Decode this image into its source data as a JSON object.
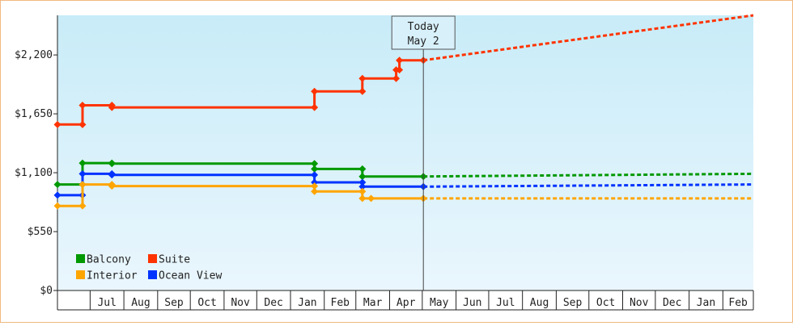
{
  "chart_data": {
    "type": "line",
    "title": "",
    "xlabel": "",
    "ylabel": "",
    "y_ticks": [
      "$0",
      "$550",
      "$1,100",
      "$1,650",
      "$2,200"
    ],
    "y_tick_values": [
      0,
      550,
      1100,
      1650,
      2200
    ],
    "ylim": [
      0,
      2570
    ],
    "x_axis_start": "2015-06-01",
    "x_axis_end": "2017-03-01",
    "x_month_ticks": [
      {
        "label": "Jul",
        "date": "2015-07-01"
      },
      {
        "label": "Aug",
        "date": "2015-08-01"
      },
      {
        "label": "Sep",
        "date": "2015-09-01"
      },
      {
        "label": "Oct",
        "date": "2015-10-01"
      },
      {
        "label": "Nov",
        "date": "2015-11-01"
      },
      {
        "label": "Dec",
        "date": "2015-12-01"
      },
      {
        "label": "Jan",
        "date": "2016-01-01"
      },
      {
        "label": "Feb",
        "date": "2016-02-01"
      },
      {
        "label": "Mar",
        "date": "2016-03-01"
      },
      {
        "label": "Apr",
        "date": "2016-04-01"
      },
      {
        "label": "May",
        "date": "2016-05-01"
      },
      {
        "label": "Jun",
        "date": "2016-06-01"
      },
      {
        "label": "Jul",
        "date": "2016-07-01"
      },
      {
        "label": "Aug",
        "date": "2016-08-01"
      },
      {
        "label": "Sep",
        "date": "2016-09-01"
      },
      {
        "label": "Oct",
        "date": "2016-10-01"
      },
      {
        "label": "Nov",
        "date": "2016-11-01"
      },
      {
        "label": "Dec",
        "date": "2016-12-01"
      },
      {
        "label": "Jan",
        "date": "2017-01-01"
      },
      {
        "label": "Feb",
        "date": "2017-02-01"
      }
    ],
    "today": {
      "line1": "Today",
      "line2": "May 2",
      "date": "2016-05-02"
    },
    "legend_position": "bottom-left",
    "grid": false,
    "series": [
      {
        "name": "Suite",
        "color": "#ff3300",
        "legend_row": 0,
        "legend_col": 1,
        "points": [
          {
            "x": "2015-06-01",
            "y": 1550
          },
          {
            "x": "2015-06-24",
            "y": 1550
          },
          {
            "x": "2015-06-24",
            "y": 1730
          },
          {
            "x": "2015-07-21",
            "y": 1730
          },
          {
            "x": "2015-07-21",
            "y": 1710
          },
          {
            "x": "2016-01-23",
            "y": 1710
          },
          {
            "x": "2016-01-23",
            "y": 1860
          },
          {
            "x": "2016-03-07",
            "y": 1860
          },
          {
            "x": "2016-03-07",
            "y": 1980
          },
          {
            "x": "2016-04-07",
            "y": 1980
          },
          {
            "x": "2016-04-07",
            "y": 2060
          },
          {
            "x": "2016-04-10",
            "y": 2060
          },
          {
            "x": "2016-04-10",
            "y": 2150
          },
          {
            "x": "2016-04-24",
            "y": 2150
          },
          {
            "x": "2016-04-24",
            "y": 2150
          },
          {
            "x": "2016-05-02",
            "y": 2150
          }
        ],
        "markers": [
          {
            "x": "2015-06-01",
            "y": 1550
          },
          {
            "x": "2015-06-24",
            "y": 1550
          },
          {
            "x": "2015-06-24",
            "y": 1730
          },
          {
            "x": "2015-07-21",
            "y": 1730
          },
          {
            "x": "2015-07-21",
            "y": 1710
          },
          {
            "x": "2016-01-23",
            "y": 1710
          },
          {
            "x": "2016-01-23",
            "y": 1860
          },
          {
            "x": "2016-03-07",
            "y": 1860
          },
          {
            "x": "2016-03-07",
            "y": 1980
          },
          {
            "x": "2016-04-07",
            "y": 1980
          },
          {
            "x": "2016-04-07",
            "y": 2060
          },
          {
            "x": "2016-04-10",
            "y": 2060
          },
          {
            "x": "2016-04-10",
            "y": 2150
          },
          {
            "x": "2016-05-02",
            "y": 2150
          }
        ],
        "forecast": [
          {
            "x": "2016-05-02",
            "y": 2150
          },
          {
            "x": "2017-03-01",
            "y": 2570
          }
        ]
      },
      {
        "name": "Balcony",
        "color": "#009900",
        "legend_row": 0,
        "legend_col": 0,
        "points": [
          {
            "x": "2015-06-01",
            "y": 990
          },
          {
            "x": "2015-06-24",
            "y": 990
          },
          {
            "x": "2015-06-24",
            "y": 1190
          },
          {
            "x": "2015-07-21",
            "y": 1190
          },
          {
            "x": "2015-07-21",
            "y": 1185
          },
          {
            "x": "2016-01-23",
            "y": 1185
          },
          {
            "x": "2016-01-23",
            "y": 1135
          },
          {
            "x": "2016-03-07",
            "y": 1135
          },
          {
            "x": "2016-03-07",
            "y": 1065
          },
          {
            "x": "2016-05-02",
            "y": 1065
          }
        ],
        "markers": [
          {
            "x": "2015-06-01",
            "y": 990
          },
          {
            "x": "2015-06-24",
            "y": 990
          },
          {
            "x": "2015-06-24",
            "y": 1190
          },
          {
            "x": "2015-07-21",
            "y": 1190
          },
          {
            "x": "2015-07-21",
            "y": 1185
          },
          {
            "x": "2016-01-23",
            "y": 1185
          },
          {
            "x": "2016-01-23",
            "y": 1135
          },
          {
            "x": "2016-03-07",
            "y": 1135
          },
          {
            "x": "2016-03-07",
            "y": 1065
          },
          {
            "x": "2016-05-02",
            "y": 1065
          }
        ],
        "forecast": [
          {
            "x": "2016-05-02",
            "y": 1065
          },
          {
            "x": "2017-03-01",
            "y": 1090
          }
        ]
      },
      {
        "name": "Ocean View",
        "color": "#0033ff",
        "legend_row": 1,
        "legend_col": 1,
        "points": [
          {
            "x": "2015-06-01",
            "y": 890
          },
          {
            "x": "2015-06-24",
            "y": 890
          },
          {
            "x": "2015-06-24",
            "y": 1090
          },
          {
            "x": "2015-07-21",
            "y": 1090
          },
          {
            "x": "2015-07-21",
            "y": 1080
          },
          {
            "x": "2016-01-23",
            "y": 1080
          },
          {
            "x": "2016-01-23",
            "y": 1010
          },
          {
            "x": "2016-03-07",
            "y": 1010
          },
          {
            "x": "2016-03-07",
            "y": 970
          },
          {
            "x": "2016-05-02",
            "y": 970
          }
        ],
        "markers": [
          {
            "x": "2015-06-01",
            "y": 890
          },
          {
            "x": "2015-06-24",
            "y": 890
          },
          {
            "x": "2015-06-24",
            "y": 1090
          },
          {
            "x": "2015-07-21",
            "y": 1090
          },
          {
            "x": "2015-07-21",
            "y": 1080
          },
          {
            "x": "2016-01-23",
            "y": 1080
          },
          {
            "x": "2016-01-23",
            "y": 1010
          },
          {
            "x": "2016-03-07",
            "y": 1010
          },
          {
            "x": "2016-03-07",
            "y": 970
          },
          {
            "x": "2016-05-02",
            "y": 970
          }
        ],
        "forecast": [
          {
            "x": "2016-05-02",
            "y": 970
          },
          {
            "x": "2017-03-01",
            "y": 990
          }
        ]
      },
      {
        "name": "Interior",
        "color": "#ffa500",
        "legend_row": 1,
        "legend_col": 0,
        "points": [
          {
            "x": "2015-06-01",
            "y": 790
          },
          {
            "x": "2015-06-24",
            "y": 790
          },
          {
            "x": "2015-06-24",
            "y": 990
          },
          {
            "x": "2015-07-21",
            "y": 990
          },
          {
            "x": "2015-07-21",
            "y": 975
          },
          {
            "x": "2016-01-23",
            "y": 975
          },
          {
            "x": "2016-01-23",
            "y": 925
          },
          {
            "x": "2016-03-07",
            "y": 925
          },
          {
            "x": "2016-03-07",
            "y": 860
          },
          {
            "x": "2016-03-15",
            "y": 860
          },
          {
            "x": "2016-03-15",
            "y": 860
          },
          {
            "x": "2016-05-02",
            "y": 860
          }
        ],
        "markers": [
          {
            "x": "2015-06-01",
            "y": 790
          },
          {
            "x": "2015-06-24",
            "y": 790
          },
          {
            "x": "2015-06-24",
            "y": 990
          },
          {
            "x": "2015-07-21",
            "y": 990
          },
          {
            "x": "2015-07-21",
            "y": 975
          },
          {
            "x": "2016-01-23",
            "y": 975
          },
          {
            "x": "2016-01-23",
            "y": 925
          },
          {
            "x": "2016-03-07",
            "y": 925
          },
          {
            "x": "2016-03-07",
            "y": 860
          },
          {
            "x": "2016-03-15",
            "y": 860
          },
          {
            "x": "2016-05-02",
            "y": 860
          }
        ],
        "forecast": [
          {
            "x": "2016-05-02",
            "y": 860
          },
          {
            "x": "2017-03-01",
            "y": 860
          }
        ]
      }
    ]
  }
}
